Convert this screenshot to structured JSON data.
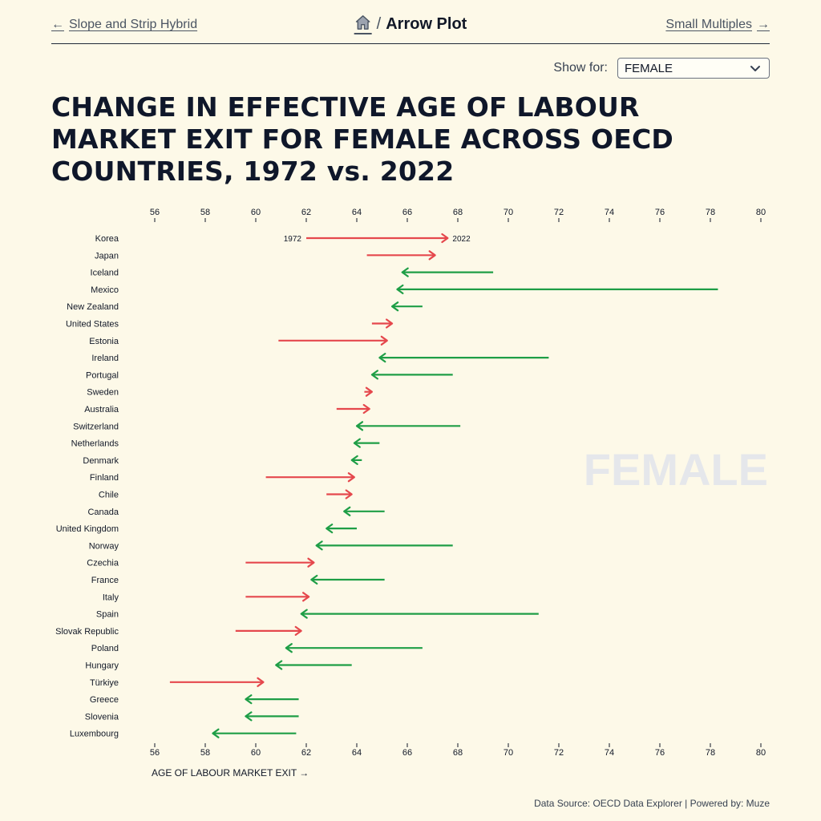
{
  "nav": {
    "prev_label": "Slope and Strip Hybrid",
    "prev_arrow": "←",
    "next_label": "Small Multiples",
    "next_arrow": "→",
    "separator": "/",
    "current": "Arrow Plot",
    "home_icon": "home-icon"
  },
  "filter": {
    "label": "Show for:",
    "selected": "FEMALE"
  },
  "title": "CHANGE IN EFFECTIVE AGE OF LABOUR MARKET EXIT FOR FEMALE ACROSS OECD COUNTRIES, 1972 vs. 2022",
  "footer": "Data Source: OECD Data Explorer | Powered by: Muze",
  "chart_data": {
    "type": "arrow",
    "xlabel": "AGE OF LABOUR MARKET EXIT →",
    "xlim": [
      55.5,
      80.5
    ],
    "xticks": [
      56,
      58,
      60,
      62,
      64,
      66,
      68,
      70,
      72,
      74,
      76,
      78,
      80
    ],
    "watermark": "FEMALE",
    "start_label": "1972",
    "end_label": "2022",
    "colors": {
      "increase": "#e5484d",
      "decrease": "#1e9e46",
      "watermark": "#e5e7eb"
    },
    "series": [
      {
        "country": "Korea",
        "y1972": 62.0,
        "y2022": 67.6
      },
      {
        "country": "Japan",
        "y1972": 64.4,
        "y2022": 67.1
      },
      {
        "country": "Iceland",
        "y1972": 69.4,
        "y2022": 65.8
      },
      {
        "country": "Mexico",
        "y1972": 78.3,
        "y2022": 65.6
      },
      {
        "country": "New Zealand",
        "y1972": 66.6,
        "y2022": 65.4
      },
      {
        "country": "United States",
        "y1972": 64.6,
        "y2022": 65.4
      },
      {
        "country": "Estonia",
        "y1972": 60.9,
        "y2022": 65.2
      },
      {
        "country": "Ireland",
        "y1972": 71.6,
        "y2022": 64.9
      },
      {
        "country": "Portugal",
        "y1972": 67.8,
        "y2022": 64.6
      },
      {
        "country": "Sweden",
        "y1972": 64.3,
        "y2022": 64.6
      },
      {
        "country": "Australia",
        "y1972": 63.2,
        "y2022": 64.5
      },
      {
        "country": "Switzerland",
        "y1972": 68.1,
        "y2022": 64.0
      },
      {
        "country": "Netherlands",
        "y1972": 64.9,
        "y2022": 63.9
      },
      {
        "country": "Denmark",
        "y1972": 64.2,
        "y2022": 63.8
      },
      {
        "country": "Finland",
        "y1972": 60.4,
        "y2022": 63.9
      },
      {
        "country": "Chile",
        "y1972": 62.8,
        "y2022": 63.8
      },
      {
        "country": "Canada",
        "y1972": 65.1,
        "y2022": 63.5
      },
      {
        "country": "United Kingdom",
        "y1972": 64.0,
        "y2022": 62.8
      },
      {
        "country": "Norway",
        "y1972": 67.8,
        "y2022": 62.4
      },
      {
        "country": "Czechia",
        "y1972": 59.6,
        "y2022": 62.3
      },
      {
        "country": "France",
        "y1972": 65.1,
        "y2022": 62.2
      },
      {
        "country": "Italy",
        "y1972": 59.6,
        "y2022": 62.1
      },
      {
        "country": "Spain",
        "y1972": 71.2,
        "y2022": 61.8
      },
      {
        "country": "Slovak Republic",
        "y1972": 59.2,
        "y2022": 61.8
      },
      {
        "country": "Poland",
        "y1972": 66.6,
        "y2022": 61.2
      },
      {
        "country": "Hungary",
        "y1972": 63.8,
        "y2022": 60.8
      },
      {
        "country": "Türkiye",
        "y1972": 56.6,
        "y2022": 60.3
      },
      {
        "country": "Greece",
        "y1972": 61.7,
        "y2022": 59.6
      },
      {
        "country": "Slovenia",
        "y1972": 61.7,
        "y2022": 59.6
      },
      {
        "country": "Luxembourg",
        "y1972": 61.6,
        "y2022": 58.3
      }
    ]
  }
}
